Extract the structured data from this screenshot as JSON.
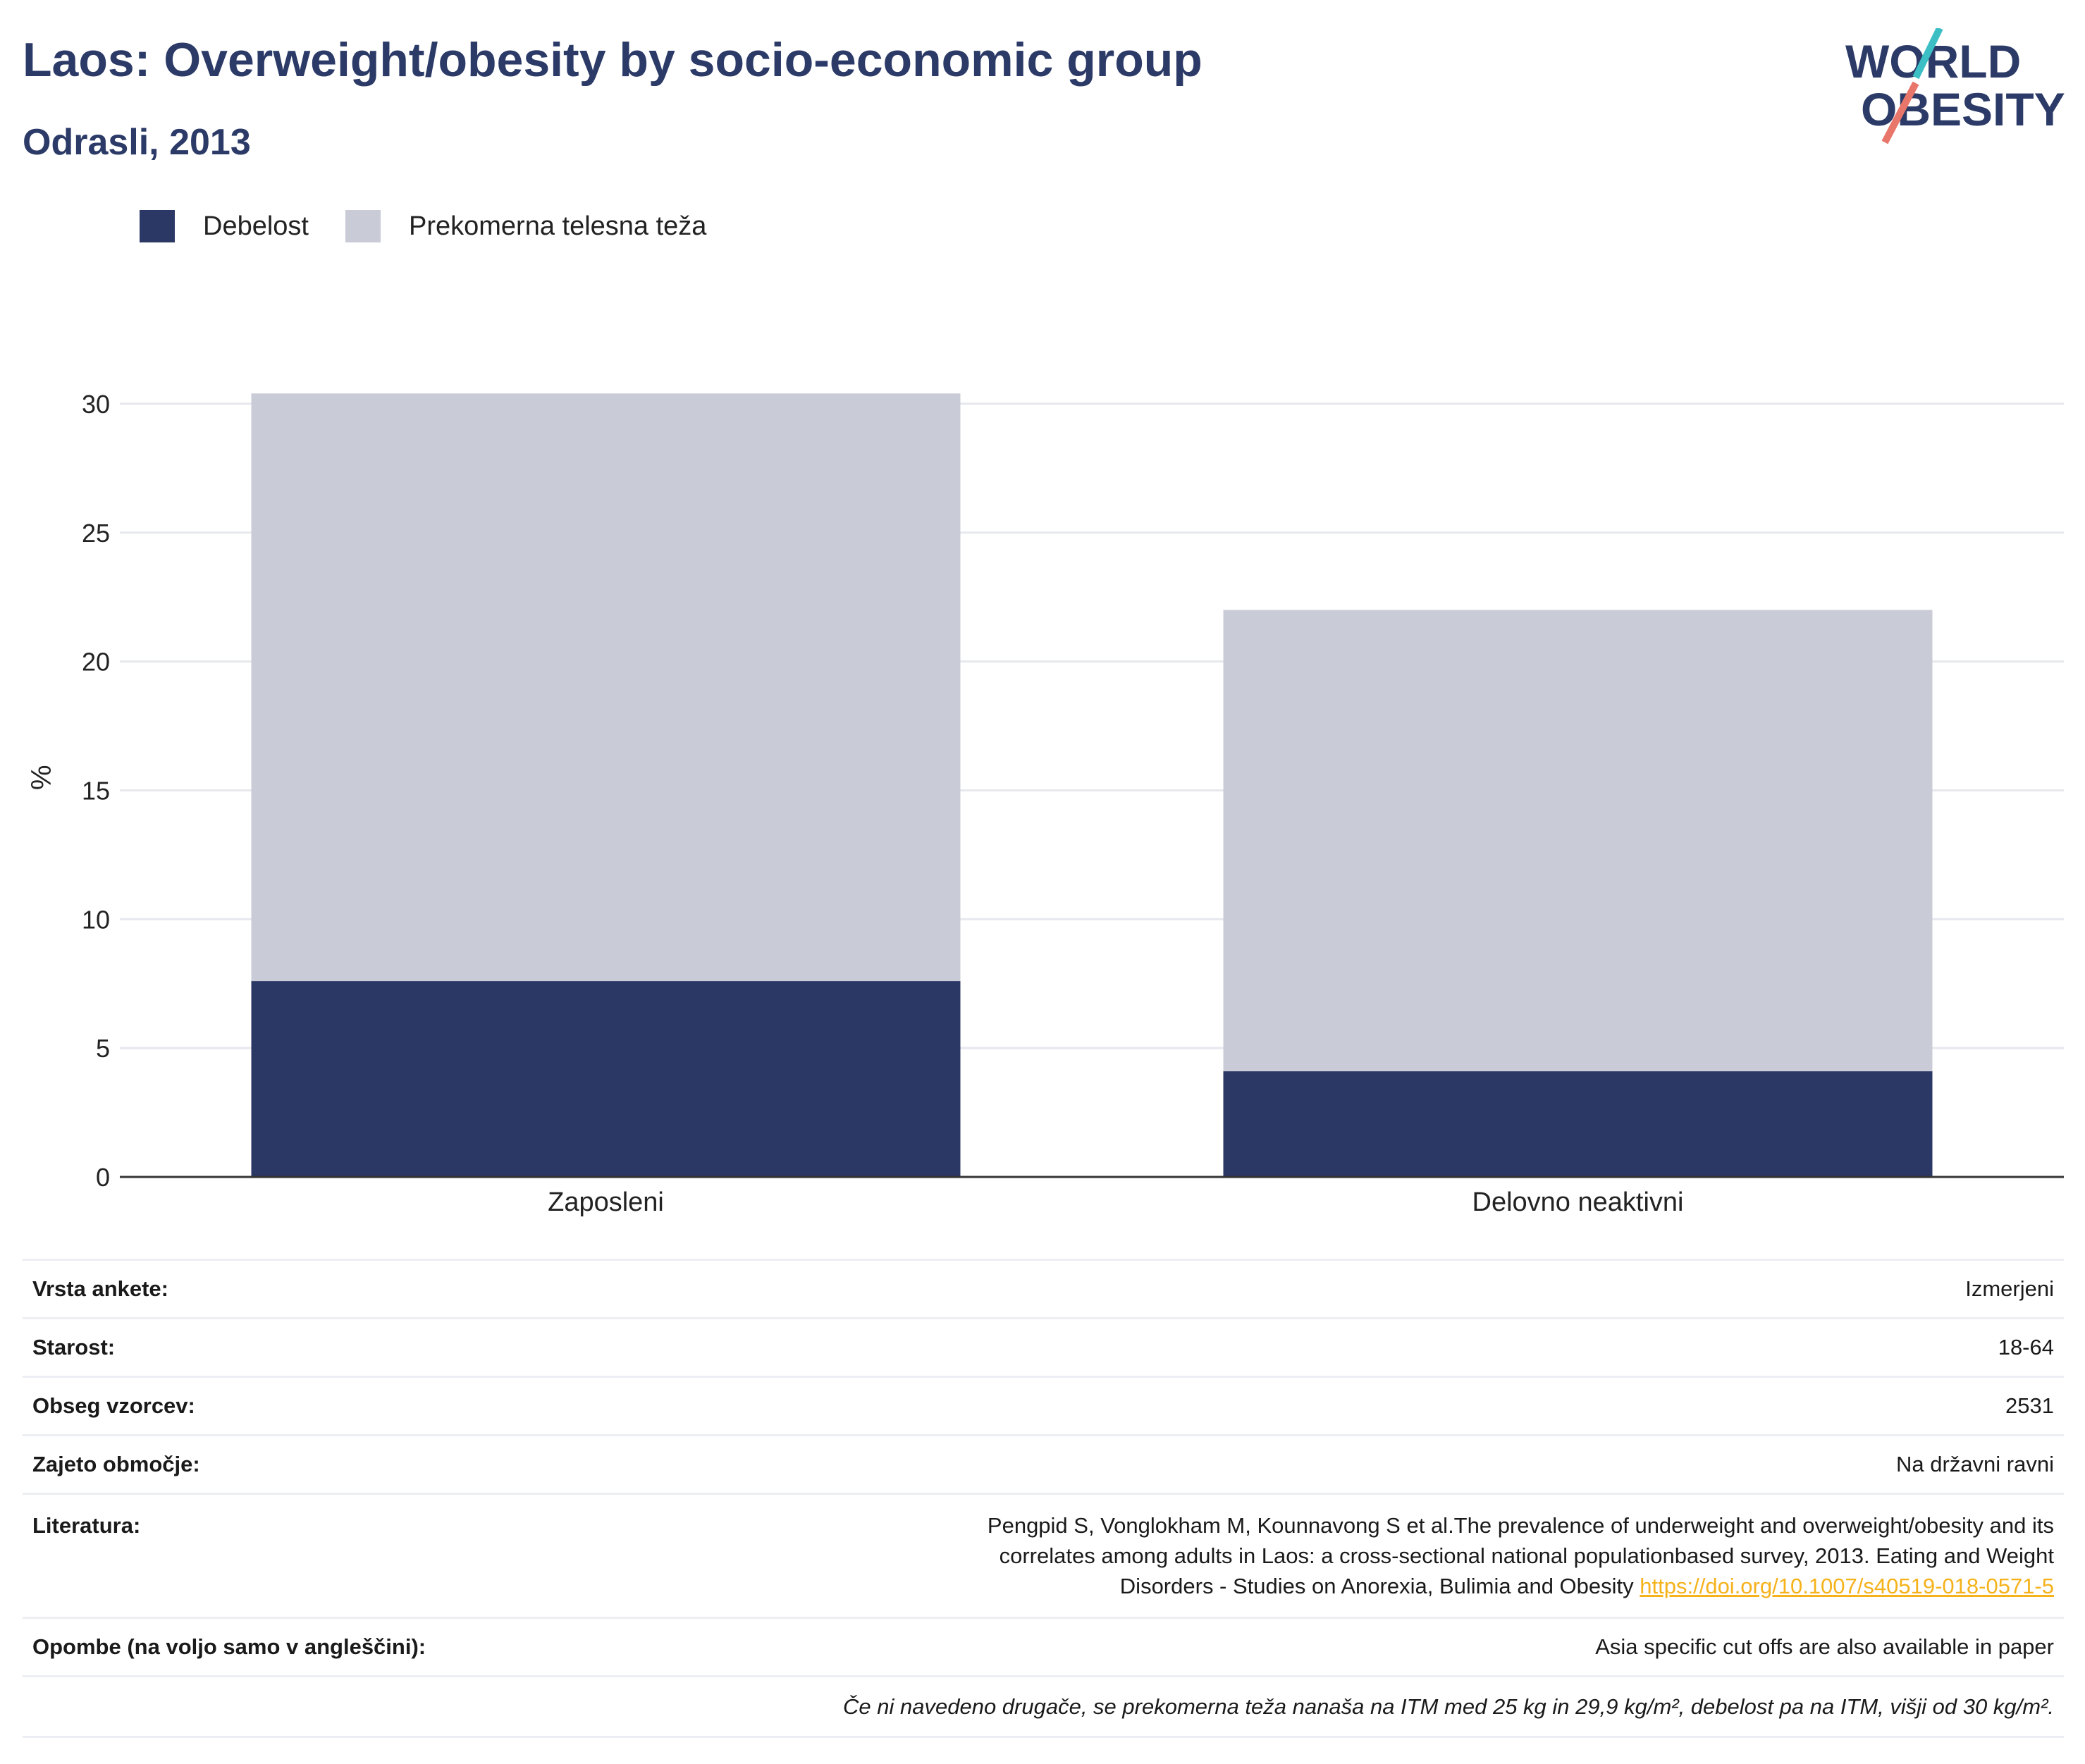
{
  "title": "Laos: Overweight/obesity by socio-economic group",
  "subtitle": "Odrasli, 2013",
  "logo": {
    "line1": "WORLD",
    "line2": "OBESITY"
  },
  "legend": [
    {
      "label": "Debelost",
      "color": "#2b3765"
    },
    {
      "label": "Prekomerna telesna teža",
      "color": "#c9ccd7"
    }
  ],
  "chart_data": {
    "type": "bar",
    "stacked": true,
    "categories": [
      "Zaposleni",
      "Delovno neaktivni"
    ],
    "series": [
      {
        "name": "Debelost",
        "values": [
          7.6,
          4.1
        ],
        "color": "#2b3765"
      },
      {
        "name": "Prekomerna telesna teža",
        "values": [
          22.8,
          17.9
        ],
        "color": "#c9ccd7"
      }
    ],
    "ylabel": "%",
    "ylim": [
      0,
      31
    ],
    "yticks": [
      0,
      5,
      10,
      15,
      20,
      25,
      30
    ],
    "grid": true,
    "legend_position": "top-left"
  },
  "info": {
    "rows": [
      {
        "key": "Vrsta ankete:",
        "value": "Izmerjeni"
      },
      {
        "key": "Starost:",
        "value": "18-64"
      },
      {
        "key": "Obseg vzorcev:",
        "value": "2531"
      },
      {
        "key": "Zajeto območje:",
        "value": "Na državni ravni"
      }
    ],
    "literature_key": "Literatura:",
    "literature_text": "Pengpid S, Vonglokham M, Kounnavong S et al.The prevalence of underweight and overweight/obesity and its correlates among adults in Laos: a cross-sectional national populationbased survey, 2013. Eating and Weight Disorders - Studies on Anorexia, Bulimia and Obesity",
    "literature_link": "https://doi.org/10.1007/s40519-018-0571-5",
    "notes_key": "Opombe (na voljo samo v angleščini):",
    "notes_value": "Asia specific cut offs are also available in paper",
    "footnote": "Če ni navedeno drugače, se prekomerna teža nanaša na ITM med 25 kg in 29,9 kg/m², debelost pa na ITM, višji od 30 kg/m²."
  }
}
